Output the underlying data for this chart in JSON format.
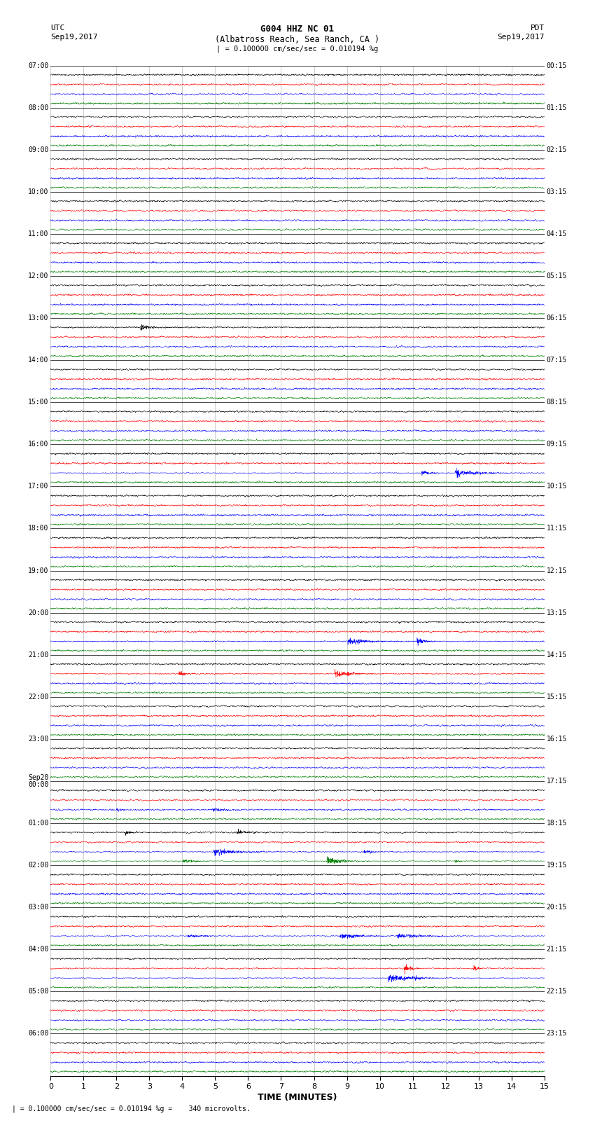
{
  "title_line1": "G004 HHZ NC 01",
  "title_line2": "(Albatross Reach, Sea Ranch, CA )",
  "scale_text": "| = 0.100000 cm/sec/sec = 0.010194 %g",
  "bottom_text": "| = 0.100000 cm/sec/sec = 0.010194 %g =    340 microvolts.",
  "utc_label": "UTC",
  "utc_date": "Sep19,2017",
  "pdt_label": "PDT",
  "pdt_date": "Sep19,2017",
  "xlabel": "TIME (MINUTES)",
  "left_times_utc": [
    "07:00",
    "08:00",
    "09:00",
    "10:00",
    "11:00",
    "12:00",
    "13:00",
    "14:00",
    "15:00",
    "16:00",
    "17:00",
    "18:00",
    "19:00",
    "20:00",
    "21:00",
    "22:00",
    "23:00",
    "Sep20\n00:00",
    "01:00",
    "02:00",
    "03:00",
    "04:00",
    "05:00",
    "06:00"
  ],
  "right_times_pdt": [
    "00:15",
    "01:15",
    "02:15",
    "03:15",
    "04:15",
    "05:15",
    "06:15",
    "07:15",
    "08:15",
    "09:15",
    "10:15",
    "11:15",
    "12:15",
    "13:15",
    "14:15",
    "15:15",
    "16:15",
    "17:15",
    "18:15",
    "19:15",
    "20:15",
    "21:15",
    "22:15",
    "23:15"
  ],
  "num_rows": 24,
  "colors": [
    "black",
    "red",
    "blue",
    "green"
  ],
  "background_color": "white",
  "fig_width": 8.5,
  "fig_height": 16.13,
  "dpi": 100,
  "xlim": [
    0,
    15
  ],
  "xticks": [
    0,
    1,
    2,
    3,
    4,
    5,
    6,
    7,
    8,
    9,
    10,
    11,
    12,
    13,
    14,
    15
  ],
  "sep20_row": 17,
  "grid_color": "#aaaaaa",
  "linewidth": 0.35
}
